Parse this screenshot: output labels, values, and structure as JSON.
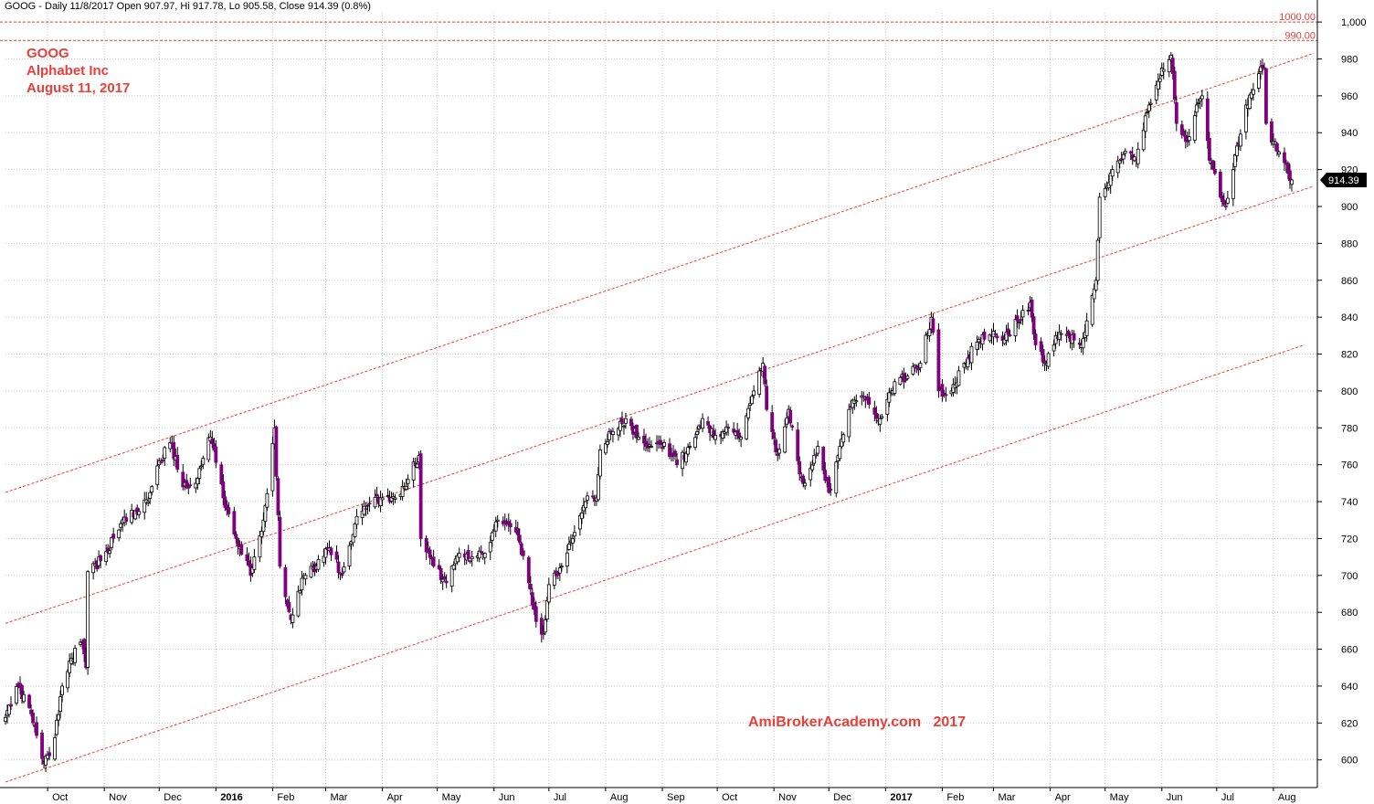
{
  "header": {
    "text": "GOOG - Daily 11/8/2017 Open 907.97, Hi 917.78, Lo 905.58, Close 914.39 (0.8%)"
  },
  "annotations": {
    "symbol": "GOOG",
    "company": "Alphabet Inc",
    "date": "August 11, 2017"
  },
  "watermark": "AmiBrokerAcademy.com   2017",
  "colors": {
    "up_candle": "#ffffff",
    "down_candle": "#800080",
    "wick": "#000000",
    "grid": "#c8c8c8",
    "channel": "#e8403a",
    "label_red": "#e8403a"
  },
  "chart_data": {
    "type": "candlestick",
    "ylim": [
      585,
      1005
    ],
    "yticks": [
      600,
      620,
      640,
      660,
      680,
      700,
      720,
      740,
      760,
      780,
      800,
      820,
      840,
      860,
      880,
      900,
      920,
      940,
      960,
      980,
      1000
    ],
    "ytick_labels": [
      "600",
      "620",
      "640",
      "660",
      "680",
      "700",
      "720",
      "740",
      "760",
      "780",
      "800",
      "820",
      "840",
      "860",
      "880",
      "900",
      "920",
      "940",
      "960",
      "980",
      "1,000"
    ],
    "xticks": [
      {
        "label": "Oct",
        "date": "2015-10-01",
        "bold": false
      },
      {
        "label": "Nov",
        "date": "2015-11-01",
        "bold": false
      },
      {
        "label": "Dec",
        "date": "2015-12-01",
        "bold": false
      },
      {
        "label": "2016",
        "date": "2016-01-01",
        "bold": true
      },
      {
        "label": "Feb",
        "date": "2016-02-01",
        "bold": false
      },
      {
        "label": "Mar",
        "date": "2016-03-01",
        "bold": false
      },
      {
        "label": "Apr",
        "date": "2016-04-01",
        "bold": false
      },
      {
        "label": "May",
        "date": "2016-05-01",
        "bold": false
      },
      {
        "label": "Jun",
        "date": "2016-06-01",
        "bold": false
      },
      {
        "label": "Jul",
        "date": "2016-07-01",
        "bold": false
      },
      {
        "label": "Aug",
        "date": "2016-08-01",
        "bold": false
      },
      {
        "label": "Sep",
        "date": "2016-09-01",
        "bold": false
      },
      {
        "label": "Oct",
        "date": "2016-10-01",
        "bold": false
      },
      {
        "label": "Nov",
        "date": "2016-11-01",
        "bold": false
      },
      {
        "label": "Dec",
        "date": "2016-12-01",
        "bold": false
      },
      {
        "label": "2017",
        "date": "2017-01-01",
        "bold": true
      },
      {
        "label": "Feb",
        "date": "2017-02-01",
        "bold": false
      },
      {
        "label": "Mar",
        "date": "2017-03-01",
        "bold": false
      },
      {
        "label": "Apr",
        "date": "2017-04-01",
        "bold": false
      },
      {
        "label": "May",
        "date": "2017-05-01",
        "bold": false
      },
      {
        "label": "Jun",
        "date": "2017-06-01",
        "bold": false
      },
      {
        "label": "Jul",
        "date": "2017-07-01",
        "bold": false
      },
      {
        "label": "Aug",
        "date": "2017-08-01",
        "bold": false
      }
    ],
    "xrange": [
      "2015-09-08",
      "2017-08-25"
    ],
    "price_path": [
      {
        "date": "2015-09-08",
        "close": 622
      },
      {
        "date": "2015-09-15",
        "close": 640
      },
      {
        "date": "2015-09-22",
        "close": 625
      },
      {
        "date": "2015-09-29",
        "close": 598
      },
      {
        "date": "2015-10-05",
        "close": 612
      },
      {
        "date": "2015-10-09",
        "close": 640
      },
      {
        "date": "2015-10-14",
        "close": 655
      },
      {
        "date": "2015-10-20",
        "close": 664
      },
      {
        "date": "2015-10-22",
        "close": 650
      },
      {
        "date": "2015-10-23",
        "close": 702
      },
      {
        "date": "2015-11-01",
        "close": 710
      },
      {
        "date": "2015-11-10",
        "close": 728
      },
      {
        "date": "2015-11-18",
        "close": 735
      },
      {
        "date": "2015-11-25",
        "close": 740
      },
      {
        "date": "2015-12-01",
        "close": 762
      },
      {
        "date": "2015-12-07",
        "close": 772
      },
      {
        "date": "2015-12-14",
        "close": 748
      },
      {
        "date": "2015-12-21",
        "close": 750
      },
      {
        "date": "2015-12-29",
        "close": 775
      },
      {
        "date": "2016-01-05",
        "close": 742
      },
      {
        "date": "2016-01-12",
        "close": 720
      },
      {
        "date": "2016-01-20",
        "close": 700
      },
      {
        "date": "2016-01-27",
        "close": 730
      },
      {
        "date": "2016-02-02",
        "close": 780
      },
      {
        "date": "2016-02-05",
        "close": 705
      },
      {
        "date": "2016-02-11",
        "close": 676
      },
      {
        "date": "2016-02-18",
        "close": 700
      },
      {
        "date": "2016-02-25",
        "close": 705
      },
      {
        "date": "2016-03-03",
        "close": 715
      },
      {
        "date": "2016-03-10",
        "close": 700
      },
      {
        "date": "2016-03-17",
        "close": 728
      },
      {
        "date": "2016-03-24",
        "close": 738
      },
      {
        "date": "2016-04-01",
        "close": 742
      },
      {
        "date": "2016-04-08",
        "close": 742
      },
      {
        "date": "2016-04-15",
        "close": 752
      },
      {
        "date": "2016-04-21",
        "close": 765
      },
      {
        "date": "2016-04-22",
        "close": 720
      },
      {
        "date": "2016-04-29",
        "close": 705
      },
      {
        "date": "2016-05-06",
        "close": 696
      },
      {
        "date": "2016-05-13",
        "close": 712
      },
      {
        "date": "2016-05-20",
        "close": 710
      },
      {
        "date": "2016-05-27",
        "close": 712
      },
      {
        "date": "2016-06-03",
        "close": 730
      },
      {
        "date": "2016-06-08",
        "close": 728
      },
      {
        "date": "2016-06-15",
        "close": 718
      },
      {
        "date": "2016-06-20",
        "close": 696
      },
      {
        "date": "2016-06-24",
        "close": 675
      },
      {
        "date": "2016-06-28",
        "close": 668
      },
      {
        "date": "2016-07-01",
        "close": 695
      },
      {
        "date": "2016-07-08",
        "close": 705
      },
      {
        "date": "2016-07-14",
        "close": 720
      },
      {
        "date": "2016-07-21",
        "close": 740
      },
      {
        "date": "2016-07-27",
        "close": 742
      },
      {
        "date": "2016-07-29",
        "close": 768
      },
      {
        "date": "2016-08-05",
        "close": 778
      },
      {
        "date": "2016-08-12",
        "close": 785
      },
      {
        "date": "2016-08-19",
        "close": 775
      },
      {
        "date": "2016-08-26",
        "close": 770
      },
      {
        "date": "2016-09-02",
        "close": 772
      },
      {
        "date": "2016-09-09",
        "close": 760
      },
      {
        "date": "2016-09-16",
        "close": 770
      },
      {
        "date": "2016-09-23",
        "close": 785
      },
      {
        "date": "2016-09-30",
        "close": 776
      },
      {
        "date": "2016-10-07",
        "close": 780
      },
      {
        "date": "2016-10-14",
        "close": 775
      },
      {
        "date": "2016-10-21",
        "close": 800
      },
      {
        "date": "2016-10-26",
        "close": 815
      },
      {
        "date": "2016-10-28",
        "close": 790
      },
      {
        "date": "2016-11-03",
        "close": 765
      },
      {
        "date": "2016-11-09",
        "close": 790
      },
      {
        "date": "2016-11-15",
        "close": 755
      },
      {
        "date": "2016-11-18",
        "close": 750
      },
      {
        "date": "2016-11-25",
        "close": 770
      },
      {
        "date": "2016-12-01",
        "close": 745
      },
      {
        "date": "2016-12-07",
        "close": 770
      },
      {
        "date": "2016-12-14",
        "close": 795
      },
      {
        "date": "2016-12-21",
        "close": 795
      },
      {
        "date": "2016-12-29",
        "close": 785
      },
      {
        "date": "2017-01-06",
        "close": 805
      },
      {
        "date": "2017-01-13",
        "close": 808
      },
      {
        "date": "2017-01-20",
        "close": 815
      },
      {
        "date": "2017-01-26",
        "close": 840
      },
      {
        "date": "2017-01-30",
        "close": 800
      },
      {
        "date": "2017-02-06",
        "close": 800
      },
      {
        "date": "2017-02-13",
        "close": 815
      },
      {
        "date": "2017-02-21",
        "close": 828
      },
      {
        "date": "2017-02-28",
        "close": 830
      },
      {
        "date": "2017-03-07",
        "close": 828
      },
      {
        "date": "2017-03-14",
        "close": 838
      },
      {
        "date": "2017-03-21",
        "close": 848
      },
      {
        "date": "2017-03-24",
        "close": 825
      },
      {
        "date": "2017-03-29",
        "close": 815
      },
      {
        "date": "2017-04-04",
        "close": 830
      },
      {
        "date": "2017-04-11",
        "close": 830
      },
      {
        "date": "2017-04-18",
        "close": 825
      },
      {
        "date": "2017-04-21",
        "close": 838
      },
      {
        "date": "2017-04-26",
        "close": 860
      },
      {
        "date": "2017-04-28",
        "close": 905
      },
      {
        "date": "2017-05-05",
        "close": 920
      },
      {
        "date": "2017-05-12",
        "close": 930
      },
      {
        "date": "2017-05-18",
        "close": 925
      },
      {
        "date": "2017-05-25",
        "close": 955
      },
      {
        "date": "2017-06-01",
        "close": 975
      },
      {
        "date": "2017-06-06",
        "close": 982
      },
      {
        "date": "2017-06-09",
        "close": 945
      },
      {
        "date": "2017-06-15",
        "close": 935
      },
      {
        "date": "2017-06-20",
        "close": 955
      },
      {
        "date": "2017-06-23",
        "close": 960
      },
      {
        "date": "2017-06-27",
        "close": 925
      },
      {
        "date": "2017-07-03",
        "close": 905
      },
      {
        "date": "2017-07-06",
        "close": 900
      },
      {
        "date": "2017-07-10",
        "close": 920
      },
      {
        "date": "2017-07-17",
        "close": 955
      },
      {
        "date": "2017-07-24",
        "close": 972
      },
      {
        "date": "2017-07-27",
        "close": 975
      },
      {
        "date": "2017-07-28",
        "close": 945
      },
      {
        "date": "2017-08-03",
        "close": 930
      },
      {
        "date": "2017-08-09",
        "close": 918
      },
      {
        "date": "2017-08-11",
        "close": 914.39
      }
    ],
    "last_close": "914.39",
    "last_close_value": 914.39,
    "horizontal_levels": [
      {
        "value": 1000,
        "label": "1000.00"
      },
      {
        "value": 990,
        "label": "990.00"
      }
    ],
    "channel_lines": [
      {
        "start": {
          "date": "2015-09-08",
          "value": 745
        },
        "end": {
          "date": "2017-08-23",
          "value": 983
        }
      },
      {
        "start": {
          "date": "2015-09-08",
          "value": 674
        },
        "end": {
          "date": "2017-08-23",
          "value": 911
        }
      },
      {
        "start": {
          "date": "2015-09-08",
          "value": 588
        },
        "end": {
          "date": "2017-08-18",
          "value": 825
        }
      }
    ]
  }
}
